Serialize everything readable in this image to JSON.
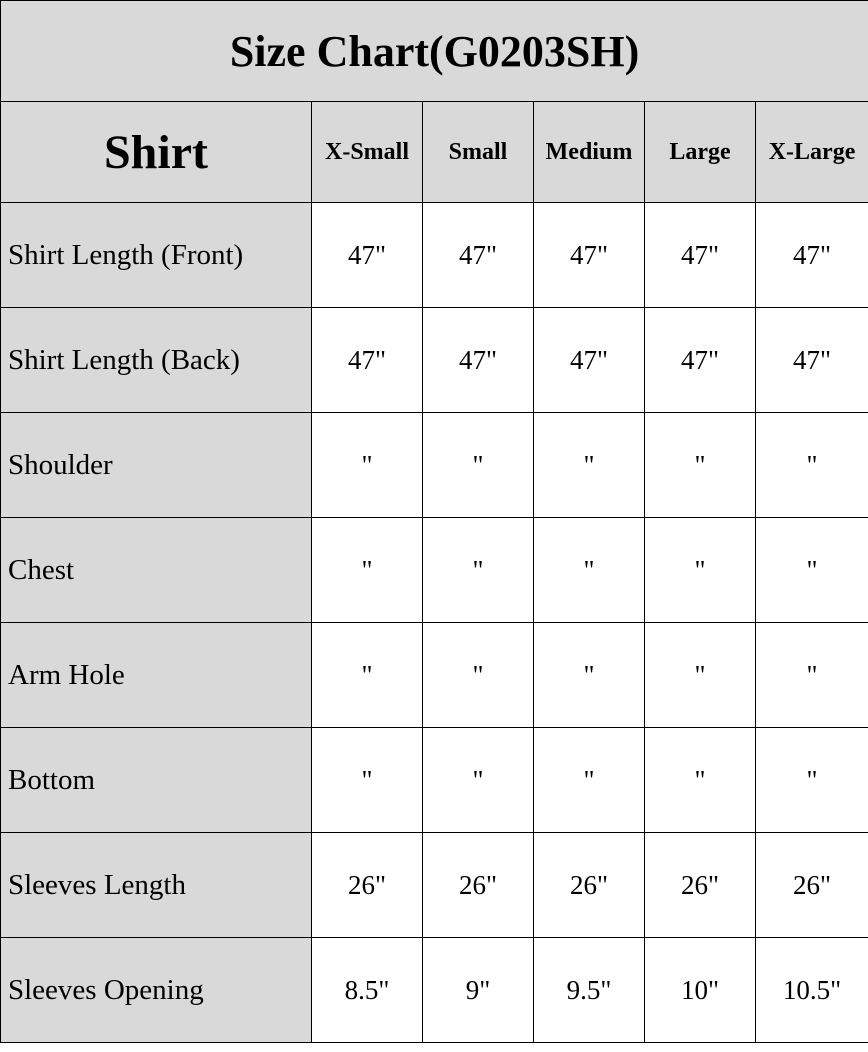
{
  "title": "Size Chart(G0203SH)",
  "header": {
    "section": "Shirt",
    "sizes": [
      "X-Small",
      "Small",
      "Medium",
      "Large",
      "X-Large"
    ]
  },
  "rows": [
    {
      "label": "Shirt Length (Front)",
      "values": [
        "47\"",
        "47\"",
        "47\"",
        "47\"",
        "47\""
      ]
    },
    {
      "label": "Shirt Length (Back)",
      "values": [
        "47\"",
        "47\"",
        "47\"",
        "47\"",
        "47\""
      ]
    },
    {
      "label": "Shoulder",
      "values": [
        "\"",
        "\"",
        "\"",
        "\"",
        "\""
      ]
    },
    {
      "label": "Chest",
      "values": [
        "\"",
        "\"",
        "\"",
        "\"",
        "\""
      ]
    },
    {
      "label": "Arm Hole",
      "values": [
        "\"",
        "\"",
        "\"",
        "\"",
        "\""
      ]
    },
    {
      "label": "Bottom",
      "values": [
        "\"",
        "\"",
        "\"",
        "\"",
        "\""
      ]
    },
    {
      "label": "Sleeves Length",
      "values": [
        "26\"",
        "26\"",
        "26\"",
        "26\"",
        "26\""
      ]
    },
    {
      "label": "Sleeves Opening",
      "values": [
        "8.5\"",
        "9\"",
        "9.5\"",
        "10\"",
        "10.5\""
      ]
    }
  ],
  "colors": {
    "header_bg": "#d9d9d9",
    "cell_bg": "#ffffff",
    "border": "#000000"
  }
}
